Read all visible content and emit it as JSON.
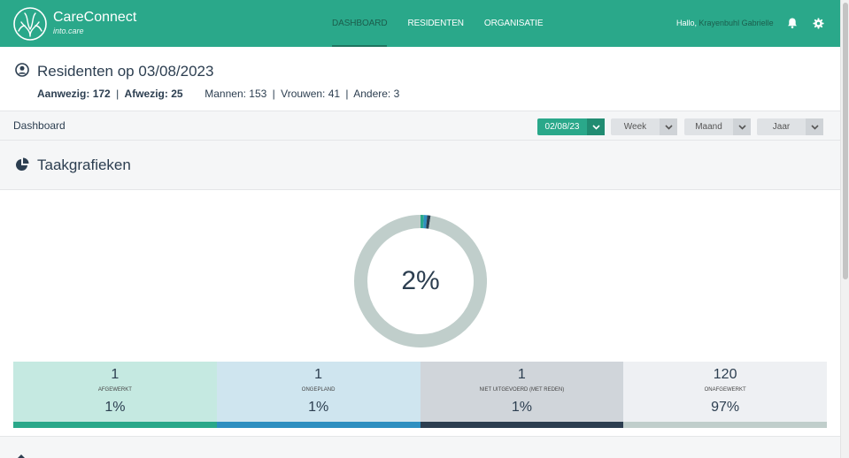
{
  "brand": {
    "name": "CareConnect",
    "subtitle": "into.care"
  },
  "nav": [
    {
      "label": "DASHBOARD",
      "active": true
    },
    {
      "label": "RESIDENTEN",
      "active": false
    },
    {
      "label": "ORGANISATIE",
      "active": false
    }
  ],
  "user": {
    "greeting": "Hallo,",
    "name": "Krayenbuhl Gabrielle"
  },
  "residents": {
    "title": "Residenten op 03/08/2023",
    "present_label": "Aanwezig:",
    "present_value": "172",
    "absent_label": "Afwezig:",
    "absent_value": "25",
    "men": "Mannen: 153",
    "women": "Vrouwen: 41",
    "other": "Andere: 3",
    "divider": "|"
  },
  "toolbar": {
    "breadcrumb": "Dashboard",
    "date": "02/08/23",
    "week": "Week",
    "month": "Maand",
    "year": "Jaar"
  },
  "tasks": {
    "title": "Taakgrafieken",
    "donut_label": "2%",
    "stats": [
      {
        "count": "1",
        "label": "AFGEWERKT",
        "pct": "1%",
        "bg": "#c5e9e1",
        "bar": "#2aa88a"
      },
      {
        "count": "1",
        "label": "ONGEPLAND",
        "pct": "1%",
        "bg": "#cfe5ef",
        "bar": "#2e8fc0"
      },
      {
        "count": "1",
        "label": "NIET UITGEVOERD (MET REDEN)",
        "pct": "1%",
        "bg": "#d0d5da",
        "bar": "#2c3e50"
      },
      {
        "count": "120",
        "label": "ONAFGEWERKT",
        "pct": "97%",
        "bg": "#eef0f3",
        "bar": "#c0cecb"
      }
    ]
  },
  "colors": {
    "primary": "#2aa88a",
    "donut_track": "#c0cecb"
  }
}
